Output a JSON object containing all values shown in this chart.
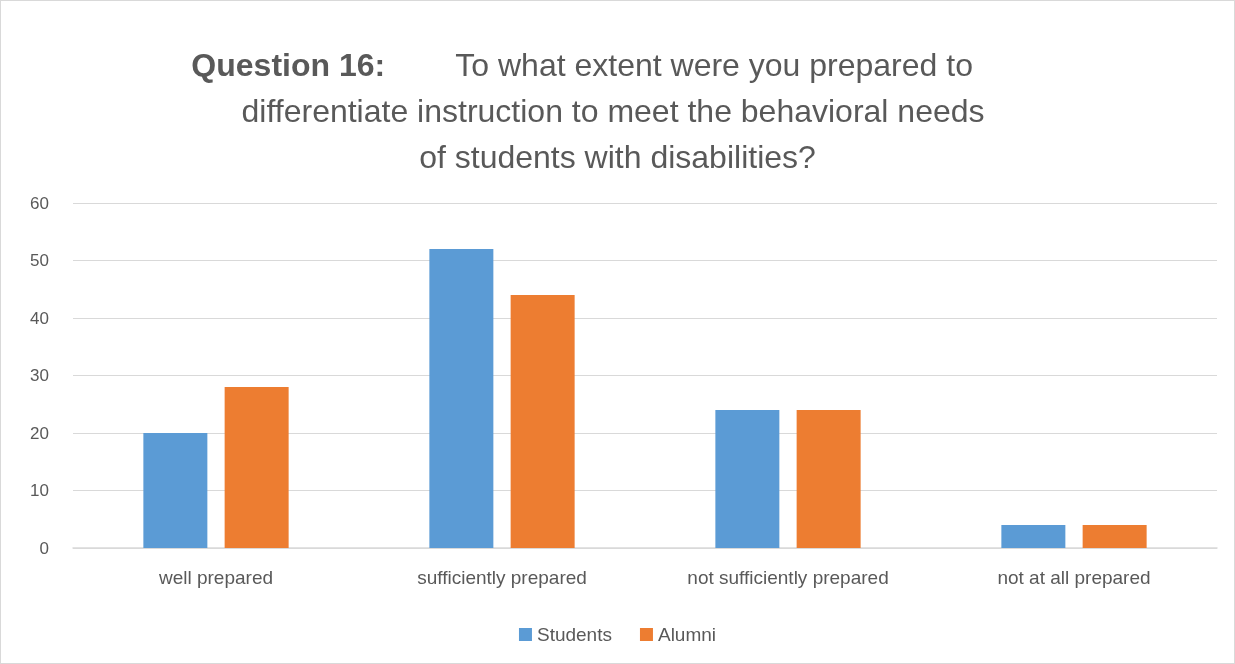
{
  "chart_data": {
    "type": "bar",
    "title": "Question 16: To what extent were you prepared to differentiate instruction to meet the behavioral needs of students with disabilities?",
    "categories": [
      "well prepared",
      "sufficiently prepared",
      "not sufficiently prepared",
      "not at all prepared"
    ],
    "series": [
      {
        "name": "Students",
        "color": "#5b9bd5",
        "values": [
          20,
          52,
          24,
          4
        ]
      },
      {
        "name": "Alumni",
        "color": "#ed7d31",
        "values": [
          28,
          44,
          24,
          4
        ]
      }
    ],
    "ylim": [
      0,
      60
    ],
    "yticks": [
      0,
      10,
      20,
      30,
      40,
      50,
      60
    ],
    "grid": "y",
    "legend": "bottom"
  }
}
